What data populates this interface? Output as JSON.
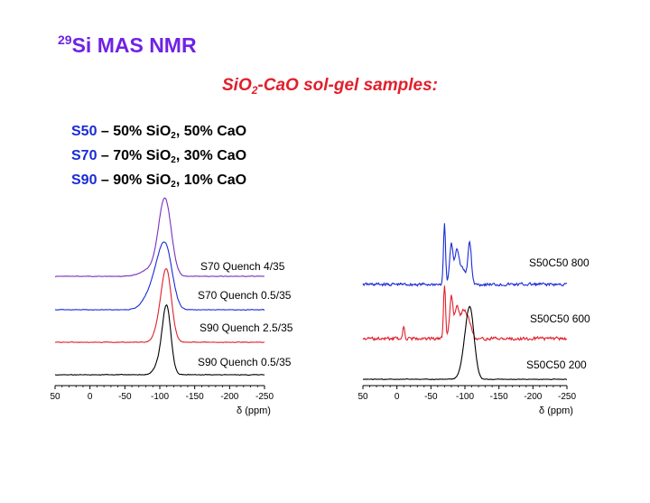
{
  "slide": {
    "title_sup": "29",
    "title_main": "Si MAS NMR",
    "subtitle": {
      "pre": "SiO",
      "sub": "2",
      "post": "-CaO sol-gel samples:"
    },
    "samples": [
      {
        "code": "S50",
        "pre": " – 50% SiO",
        "sub": "2",
        "post": ", 50% CaO"
      },
      {
        "code": "S70",
        "pre": " – 70% SiO",
        "sub": "2",
        "post": ", 30% CaO"
      },
      {
        "code": "S90",
        "pre": " – 90% SiO",
        "sub": "2",
        "post": ", 10% CaO"
      }
    ]
  },
  "chart_data": [
    {
      "type": "line",
      "xlabel": "δ (ppm)",
      "xlim": [
        50,
        -250
      ],
      "xticks": [
        50,
        0,
        -50,
        -100,
        -150,
        -200,
        -250
      ],
      "y_axis": "none",
      "series": [
        {
          "name": "S70 Quench 4/35",
          "color": "#7b2fbe",
          "baseline": "flat",
          "peaks": [
            {
              "center": -110,
              "height": 3.0,
              "width": 8
            },
            {
              "center": -102,
              "height": 1.4,
              "width": 7
            },
            {
              "center": -92,
              "height": 0.4,
              "width": 8
            },
            {
              "center": -78,
              "height": 0.2,
              "width": 10
            }
          ]
        },
        {
          "name": "S70 Quench 0.5/35",
          "color": "#1a2bd6",
          "baseline": "flat",
          "peaks": [
            {
              "center": -110,
              "height": 2.6,
              "width": 9
            },
            {
              "center": -98,
              "height": 1.5,
              "width": 9
            },
            {
              "center": -84,
              "height": 0.6,
              "width": 10
            }
          ]
        },
        {
          "name": "S90 Quench 2.5/35",
          "color": "#e0202c",
          "baseline": "flat",
          "peaks": [
            {
              "center": -110,
              "height": 3.4,
              "width": 7
            },
            {
              "center": -100,
              "height": 0.8,
              "width": 7
            }
          ]
        },
        {
          "name": "S90 Quench 0.5/35",
          "color": "#000000",
          "baseline": "flat",
          "peaks": [
            {
              "center": -110,
              "height": 3.3,
              "width": 6
            },
            {
              "center": -100,
              "height": 0.6,
              "width": 7
            }
          ]
        }
      ]
    },
    {
      "type": "line",
      "xlabel": "δ (ppm)",
      "xlim": [
        50,
        -250
      ],
      "xticks": [
        50,
        0,
        -50,
        -100,
        -150,
        -200,
        -250
      ],
      "y_axis": "none",
      "series": [
        {
          "name": "S50C50 800",
          "color": "#1a2bd6",
          "baseline": "noisy",
          "peaks": [
            {
              "center": -70,
              "height": 3.0,
              "width": 1.5
            },
            {
              "center": -80,
              "height": 2.0,
              "width": 2.5
            },
            {
              "center": -88,
              "height": 1.6,
              "width": 3
            },
            {
              "center": -107,
              "height": 2.1,
              "width": 2.5
            },
            {
              "center": -96,
              "height": 0.8,
              "width": 5
            }
          ]
        },
        {
          "name": "S50C50 600",
          "color": "#e0202c",
          "baseline": "noisy",
          "peaks": [
            {
              "center": -70,
              "height": 2.7,
              "width": 1.5
            },
            {
              "center": -80,
              "height": 2.1,
              "width": 2.5
            },
            {
              "center": -88,
              "height": 1.6,
              "width": 3
            },
            {
              "center": -97,
              "height": 1.3,
              "width": 4
            },
            {
              "center": -105,
              "height": 0.9,
              "width": 4
            },
            {
              "center": -10,
              "height": 0.6,
              "width": 1.2
            }
          ]
        },
        {
          "name": "S50C50 200",
          "color": "#000000",
          "baseline": "flat",
          "peaks": [
            {
              "center": -108,
              "height": 3.2,
              "width": 6
            },
            {
              "center": -100,
              "height": 1.0,
              "width": 6
            }
          ]
        }
      ]
    }
  ]
}
